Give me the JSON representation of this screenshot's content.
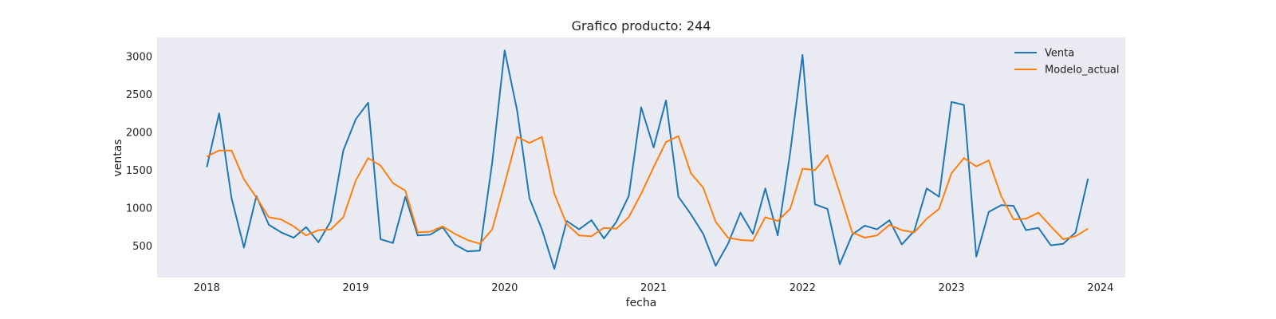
{
  "chart_data": {
    "type": "line",
    "title": "Grafico producto: 244",
    "xlabel": "fecha",
    "ylabel": "ventas",
    "x_ticks": [
      "2018",
      "2019",
      "2020",
      "2021",
      "2022",
      "2023",
      "2024"
    ],
    "y_ticks": [
      500,
      1000,
      1500,
      2000,
      2500,
      3000
    ],
    "x_range": [
      "2017-09",
      "2024-03"
    ],
    "ylim": [
      85,
      3250
    ],
    "grid": false,
    "background": "#eaeaf2",
    "legend_position": "top-right",
    "dates": [
      "2018-01",
      "2018-02",
      "2018-03",
      "2018-04",
      "2018-05",
      "2018-06",
      "2018-07",
      "2018-08",
      "2018-09",
      "2018-10",
      "2018-11",
      "2018-12",
      "2019-01",
      "2019-02",
      "2019-03",
      "2019-04",
      "2019-05",
      "2019-06",
      "2019-07",
      "2019-08",
      "2019-09",
      "2019-10",
      "2019-11",
      "2019-12",
      "2020-01",
      "2020-02",
      "2020-03",
      "2020-04",
      "2020-05",
      "2020-06",
      "2020-07",
      "2020-08",
      "2020-09",
      "2020-10",
      "2020-11",
      "2020-12",
      "2021-01",
      "2021-02",
      "2021-03",
      "2021-04",
      "2021-05",
      "2021-06",
      "2021-07",
      "2021-08",
      "2021-09",
      "2021-10",
      "2021-11",
      "2021-12",
      "2022-01",
      "2022-02",
      "2022-03",
      "2022-04",
      "2022-05",
      "2022-06",
      "2022-07",
      "2022-08",
      "2022-09",
      "2022-10",
      "2022-11",
      "2022-12",
      "2023-01",
      "2023-02",
      "2023-03",
      "2023-04",
      "2023-05",
      "2023-06",
      "2023-07",
      "2023-08",
      "2023-09",
      "2023-10",
      "2023-11",
      "2023-12"
    ],
    "series": [
      {
        "name": "Venta",
        "color": "#1f77b4",
        "values": [
          1540,
          2250,
          1130,
          480,
          1160,
          780,
          680,
          610,
          750,
          550,
          830,
          1760,
          2170,
          2390,
          590,
          540,
          1150,
          640,
          650,
          750,
          520,
          430,
          440,
          1600,
          3080,
          2290,
          1130,
          720,
          200,
          830,
          720,
          840,
          600,
          820,
          1160,
          2330,
          1800,
          2420,
          1150,
          920,
          660,
          240,
          530,
          940,
          660,
          1260,
          640,
          1730,
          3020,
          1050,
          990,
          260,
          650,
          770,
          720,
          840,
          520,
          700,
          1260,
          1150,
          2400,
          2360,
          360,
          950,
          1040,
          1030,
          710,
          740,
          510,
          530,
          680,
          1390
        ]
      },
      {
        "name": "Modelo_actual",
        "color": "#ff7f0e",
        "values": [
          1680,
          1760,
          1760,
          1380,
          1140,
          880,
          850,
          760,
          640,
          710,
          720,
          880,
          1360,
          1660,
          1560,
          1330,
          1230,
          680,
          690,
          760,
          660,
          580,
          530,
          720,
          1320,
          1940,
          1860,
          1940,
          1190,
          790,
          640,
          630,
          740,
          730,
          880,
          1190,
          1540,
          1870,
          1950,
          1460,
          1270,
          820,
          610,
          580,
          570,
          880,
          830,
          990,
          1520,
          1500,
          1700,
          1200,
          680,
          610,
          640,
          780,
          710,
          680,
          860,
          990,
          1460,
          1660,
          1550,
          1630,
          1160,
          850,
          860,
          940,
          760,
          590,
          630,
          730
        ]
      }
    ]
  }
}
